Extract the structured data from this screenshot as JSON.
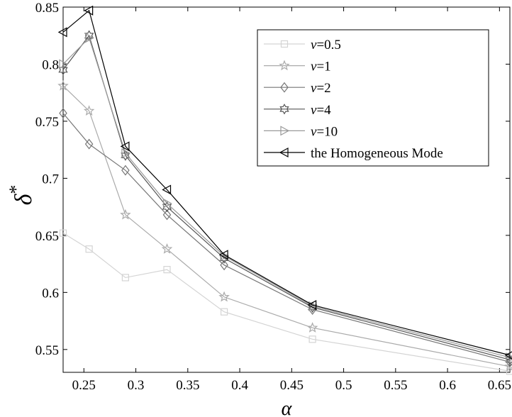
{
  "chart_data": {
    "type": "line",
    "xlabel": "α",
    "ylabel": "δ",
    "ylabel_superscript": "*",
    "xlim": [
      0.23,
      0.66
    ],
    "ylim": [
      0.53,
      0.85
    ],
    "xticks": [
      "0.25",
      "0.3",
      "0.35",
      "0.4",
      "0.45",
      "0.5",
      "0.55",
      "0.6",
      "0.65"
    ],
    "yticks": [
      "0.55",
      "0.6",
      "0.65",
      "0.7",
      "0.75",
      "0.8",
      "0.85"
    ],
    "grid": false,
    "legend_position": "top-right",
    "x": [
      0.23,
      0.255,
      0.29,
      0.33,
      0.385,
      0.47,
      0.66
    ],
    "series": [
      {
        "name": "v=0.5",
        "name_var": "v",
        "name_val": "=0.5",
        "marker": "square",
        "color": "#d4d4d4",
        "values": [
          0.652,
          0.638,
          0.613,
          0.62,
          0.583,
          0.559,
          0.531
        ]
      },
      {
        "name": "v=1",
        "name_var": "v",
        "name_val": "=1",
        "marker": "star5",
        "color": "#aaaaaa",
        "values": [
          0.781,
          0.759,
          0.668,
          0.638,
          0.596,
          0.569,
          0.535
        ]
      },
      {
        "name": "v=2",
        "name_var": "v",
        "name_val": "=2",
        "marker": "diamond",
        "color": "#777777",
        "values": [
          0.757,
          0.73,
          0.707,
          0.668,
          0.624,
          0.585,
          0.539
        ]
      },
      {
        "name": "v=4",
        "name_var": "v",
        "name_val": "=4",
        "marker": "star6",
        "color": "#555555",
        "values": [
          0.795,
          0.825,
          0.72,
          0.675,
          0.63,
          0.587,
          0.541
        ]
      },
      {
        "name": "v=10",
        "name_var": "v",
        "name_val": "=10",
        "marker": "triangle-right",
        "color": "#999999",
        "values": [
          0.8,
          0.823,
          0.722,
          0.678,
          0.632,
          0.588,
          0.543
        ]
      },
      {
        "name": "the Homogeneous Mode",
        "name_var": "",
        "name_val": "the Homogeneous Mode",
        "marker": "triangle-left",
        "color": "#000000",
        "values": [
          0.828,
          0.847,
          0.728,
          0.69,
          0.633,
          0.589,
          0.545
        ]
      }
    ]
  }
}
